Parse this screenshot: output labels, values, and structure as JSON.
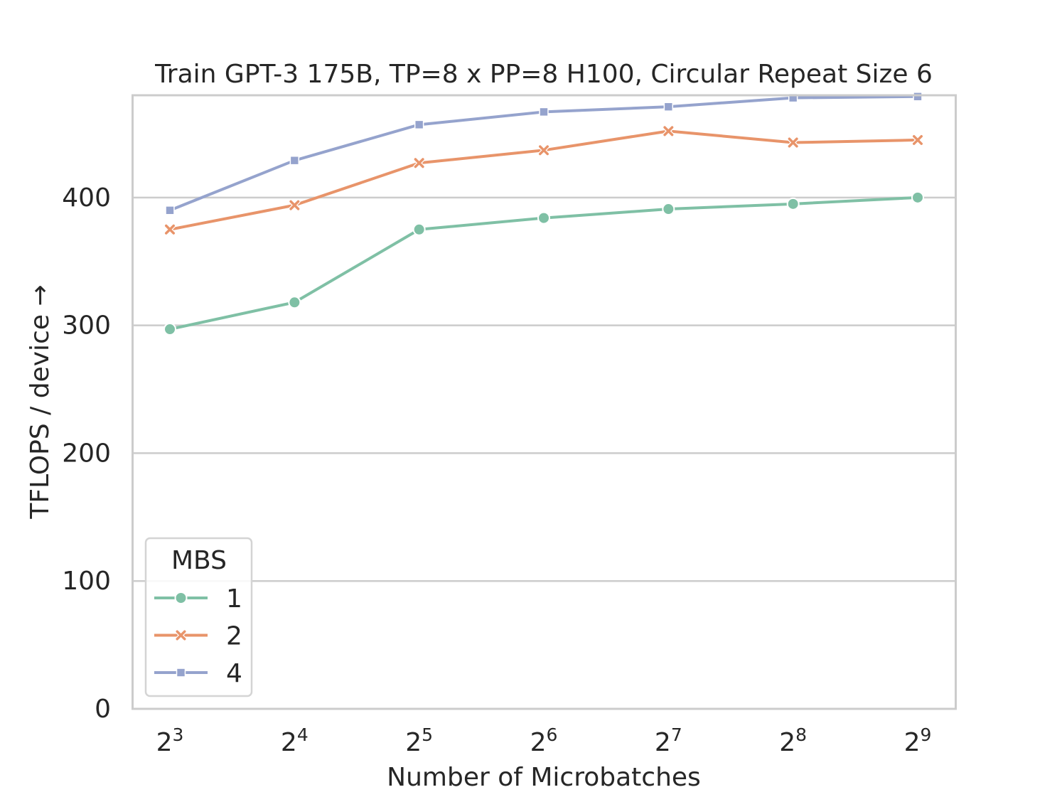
{
  "chart_data": {
    "type": "line",
    "title": "Train GPT-3 175B, TP=8 x PP=8 H100, Circular Repeat Size 6",
    "xlabel": "Number of Microbatches",
    "ylabel": "TFLOPS / device →",
    "x_scale": "log2",
    "x": [
      8,
      16,
      32,
      64,
      128,
      256,
      512
    ],
    "x_tick_labels": [
      {
        "base": "2",
        "exp": "3"
      },
      {
        "base": "2",
        "exp": "4"
      },
      {
        "base": "2",
        "exp": "5"
      },
      {
        "base": "2",
        "exp": "6"
      },
      {
        "base": "2",
        "exp": "7"
      },
      {
        "base": "2",
        "exp": "8"
      },
      {
        "base": "2",
        "exp": "9"
      }
    ],
    "ylim": [
      0,
      480
    ],
    "y_ticks": [
      0,
      100,
      200,
      300,
      400
    ],
    "grid": true,
    "legend": {
      "title": "MBS",
      "placement": "lower-left"
    },
    "series": [
      {
        "name": "1",
        "marker": "circle",
        "color": "#7fc0a5",
        "values": [
          297,
          318,
          375,
          384,
          391,
          395,
          400
        ]
      },
      {
        "name": "2",
        "marker": "x",
        "color": "#e8946a",
        "values": [
          375,
          394,
          427,
          437,
          452,
          443,
          445
        ]
      },
      {
        "name": "4",
        "marker": "square",
        "color": "#95a3cd",
        "values": [
          390,
          429,
          457,
          467,
          471,
          478,
          479
        ]
      }
    ]
  }
}
